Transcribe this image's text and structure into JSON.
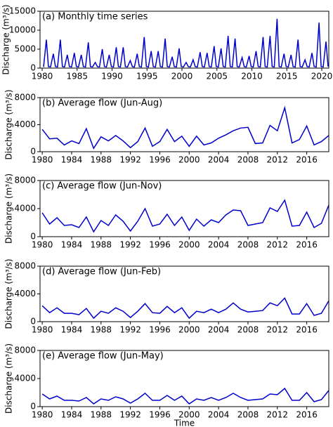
{
  "chart_data": [
    {
      "type": "line",
      "title": "(a) Monthly time series",
      "ylabel": "Discharge (m³/s)",
      "color": "#0000cc",
      "x": [
        1980.2,
        1980.6,
        1980.9,
        1981.2,
        1981.6,
        1981.9,
        1982.2,
        1982.6,
        1982.9,
        1983.2,
        1983.6,
        1983.9,
        1984.2,
        1984.6,
        1984.9,
        1985.2,
        1985.6,
        1985.9,
        1986.2,
        1986.6,
        1986.9,
        1987.2,
        1987.6,
        1987.9,
        1988.2,
        1988.6,
        1988.9,
        1989.2,
        1989.6,
        1989.9,
        1990.2,
        1990.6,
        1990.9,
        1991.2,
        1991.6,
        1991.9,
        1992.2,
        1992.6,
        1992.9,
        1993.2,
        1993.6,
        1993.9,
        1994.2,
        1994.6,
        1994.9,
        1995.2,
        1995.6,
        1995.9,
        1996.2,
        1996.6,
        1996.9,
        1997.2,
        1997.6,
        1997.9,
        1998.2,
        1998.6,
        1998.9,
        1999.2,
        1999.6,
        1999.9,
        2000.2,
        2000.6,
        2000.9,
        2001.2,
        2001.6,
        2001.9,
        2002.2,
        2002.6,
        2002.9,
        2003.2,
        2003.6,
        2003.9,
        2004.2,
        2004.6,
        2004.9,
        2005.2,
        2005.6,
        2005.9,
        2006.2,
        2006.6,
        2006.9,
        2007.2,
        2007.6,
        2007.9,
        2008.2,
        2008.6,
        2008.9,
        2009.2,
        2009.6,
        2009.9,
        2010.2,
        2010.6,
        2010.9,
        2011.2,
        2011.6,
        2011.9,
        2012.2,
        2012.6,
        2012.9,
        2013.2,
        2013.6,
        2013.9,
        2014.2,
        2014.6,
        2014.9,
        2015.2,
        2015.6,
        2015.9,
        2016.2,
        2016.6,
        2016.9,
        2017.2,
        2017.6,
        2017.9,
        2018.2,
        2018.6,
        2018.9,
        2019.2,
        2019.6,
        2019.9,
        2020.2,
        2020.6,
        2020.9
      ],
      "values": [
        300,
        7500,
        400,
        300,
        3800,
        400,
        300,
        7500,
        400,
        300,
        3500,
        400,
        300,
        4000,
        400,
        300,
        3500,
        400,
        300,
        6800,
        400,
        300,
        1500,
        400,
        300,
        5000,
        400,
        300,
        3500,
        400,
        300,
        5500,
        400,
        300,
        5500,
        400,
        300,
        2000,
        400,
        300,
        3800,
        400,
        300,
        8200,
        400,
        300,
        4500,
        400,
        300,
        4500,
        400,
        300,
        7800,
        400,
        300,
        3000,
        400,
        300,
        5200,
        400,
        300,
        1500,
        400,
        300,
        2200,
        400,
        300,
        4200,
        400,
        300,
        4000,
        400,
        300,
        5800,
        400,
        300,
        5200,
        400,
        300,
        8500,
        400,
        300,
        7800,
        400,
        300,
        2800,
        400,
        300,
        3200,
        400,
        300,
        4500,
        400,
        300,
        8200,
        400,
        300,
        8500,
        400,
        300,
        13000,
        400,
        300,
        3800,
        400,
        300,
        3500,
        400,
        300,
        7500,
        400,
        300,
        2200,
        400,
        300,
        4000,
        400,
        300,
        12000,
        400,
        300,
        7000,
        400
      ],
      "xlim": [
        1979.7,
        2021.0
      ],
      "xticks": [
        1980,
        1985,
        1990,
        1995,
        2000,
        2005,
        2010,
        2015,
        2020
      ],
      "ylim": [
        0,
        15000
      ],
      "yticks": [
        0,
        5000,
        10000,
        15000
      ]
    },
    {
      "type": "line",
      "title": "(b) Average flow (Jun-Aug)",
      "ylabel": "Discharge (m³/s)",
      "color": "#0000cc",
      "x": [
        1980,
        1981,
        1982,
        1983,
        1984,
        1985,
        1986,
        1987,
        1988,
        1989,
        1990,
        1991,
        1992,
        1993,
        1994,
        1995,
        1996,
        1997,
        1998,
        1999,
        2000,
        2001,
        2002,
        2003,
        2004,
        2005,
        2006,
        2007,
        2008,
        2009,
        2010,
        2011,
        2012,
        2013,
        2014,
        2015,
        2016,
        2017,
        2018,
        2019
      ],
      "values": [
        3300,
        1900,
        2000,
        1000,
        1600,
        1200,
        3400,
        500,
        2200,
        1600,
        2400,
        1600,
        600,
        1500,
        3500,
        800,
        1500,
        3300,
        1500,
        2300,
        800,
        2300,
        1000,
        1300,
        2000,
        2500,
        3100,
        3500,
        3600,
        1200,
        1300,
        3900,
        3100,
        6500,
        1300,
        1800,
        3800,
        1000,
        1500,
        2400
      ],
      "xlim": [
        1979.7,
        2019
      ],
      "xticks": [
        1980,
        1984,
        1988,
        1992,
        1996,
        2000,
        2004,
        2008,
        2012,
        2016
      ],
      "ylim": [
        0,
        8000
      ],
      "yticks": [
        0,
        4000,
        8000
      ]
    },
    {
      "type": "line",
      "title": "(c) Average flow (Jun-Nov)",
      "ylabel": "Discharge (m³/s)",
      "color": "#0000cc",
      "x": [
        1980,
        1981,
        1982,
        1983,
        1984,
        1985,
        1986,
        1987,
        1988,
        1989,
        1990,
        1991,
        1992,
        1993,
        1994,
        1995,
        1996,
        1997,
        1998,
        1999,
        2000,
        2001,
        2002,
        2003,
        2004,
        2005,
        2006,
        2007,
        2008,
        2009,
        2010,
        2011,
        2012,
        2013,
        2014,
        2015,
        2016,
        2017,
        2018,
        2019
      ],
      "values": [
        3400,
        1800,
        2700,
        1600,
        1700,
        1300,
        2800,
        700,
        2300,
        1600,
        3100,
        2200,
        800,
        2200,
        4000,
        1500,
        1800,
        3200,
        1600,
        2800,
        900,
        2500,
        1500,
        2400,
        2000,
        3100,
        3800,
        3700,
        1600,
        1800,
        2000,
        4100,
        3600,
        5200,
        1500,
        1600,
        3500,
        1300,
        1900,
        4500
      ],
      "xlim": [
        1979.7,
        2019
      ],
      "xticks": [
        1980,
        1984,
        1988,
        1992,
        1996,
        2000,
        2004,
        2008,
        2012,
        2016
      ],
      "ylim": [
        0,
        8000
      ],
      "yticks": [
        0,
        4000,
        8000
      ]
    },
    {
      "type": "line",
      "title": "(d) Average flow (Jun-Feb)",
      "ylabel": "Discharge (m³/s)",
      "color": "#0000cc",
      "x": [
        1980,
        1981,
        1982,
        1983,
        1984,
        1985,
        1986,
        1987,
        1988,
        1989,
        1990,
        1991,
        1992,
        1993,
        1994,
        1995,
        1996,
        1997,
        1998,
        1999,
        2000,
        2001,
        2002,
        2003,
        2004,
        2005,
        2006,
        2007,
        2008,
        2009,
        2010,
        2011,
        2012,
        2013,
        2014,
        2015,
        2016,
        2017,
        2018,
        2019
      ],
      "values": [
        2300,
        1300,
        2000,
        1200,
        1200,
        1000,
        1900,
        500,
        1500,
        1200,
        2000,
        1500,
        600,
        1500,
        2600,
        1300,
        1200,
        2200,
        1300,
        2000,
        500,
        1500,
        1300,
        1800,
        1300,
        1800,
        2700,
        1800,
        1400,
        1500,
        1600,
        2700,
        2300,
        3400,
        1100,
        1100,
        2600,
        900,
        1200,
        3000
      ],
      "xlim": [
        1979.7,
        2019
      ],
      "xticks": [
        1980,
        1984,
        1988,
        1992,
        1996,
        2000,
        2004,
        2008,
        2012,
        2016
      ],
      "ylim": [
        0,
        8000
      ],
      "yticks": [
        0,
        4000,
        8000
      ]
    },
    {
      "type": "line",
      "title": "(e) Average flow (Jun-May)",
      "ylabel": "Discharge (m³/s)",
      "xlabel": "Time",
      "color": "#0000cc",
      "x": [
        1980,
        1981,
        1982,
        1983,
        1984,
        1985,
        1986,
        1987,
        1988,
        1989,
        1990,
        1991,
        1992,
        1993,
        1994,
        1995,
        1996,
        1997,
        1998,
        1999,
        2000,
        2001,
        2002,
        2003,
        2004,
        2005,
        2006,
        2007,
        2008,
        2009,
        2010,
        2011,
        2012,
        2013,
        2014,
        2015,
        2016,
        2017,
        2018,
        2019
      ],
      "values": [
        1800,
        1100,
        1500,
        900,
        900,
        800,
        1300,
        400,
        1100,
        900,
        1400,
        1100,
        500,
        1100,
        1900,
        900,
        900,
        1600,
        900,
        1500,
        400,
        1100,
        900,
        1300,
        900,
        1300,
        1900,
        1300,
        900,
        1000,
        1100,
        1800,
        1700,
        2600,
        900,
        900,
        2000,
        700,
        1000,
        2300
      ],
      "xlim": [
        1979.7,
        2019
      ],
      "xticks": [
        1980,
        1984,
        1988,
        1992,
        1996,
        2000,
        2004,
        2008,
        2012,
        2016
      ],
      "ylim": [
        0,
        8000
      ],
      "yticks": [
        0,
        4000,
        8000
      ]
    }
  ]
}
